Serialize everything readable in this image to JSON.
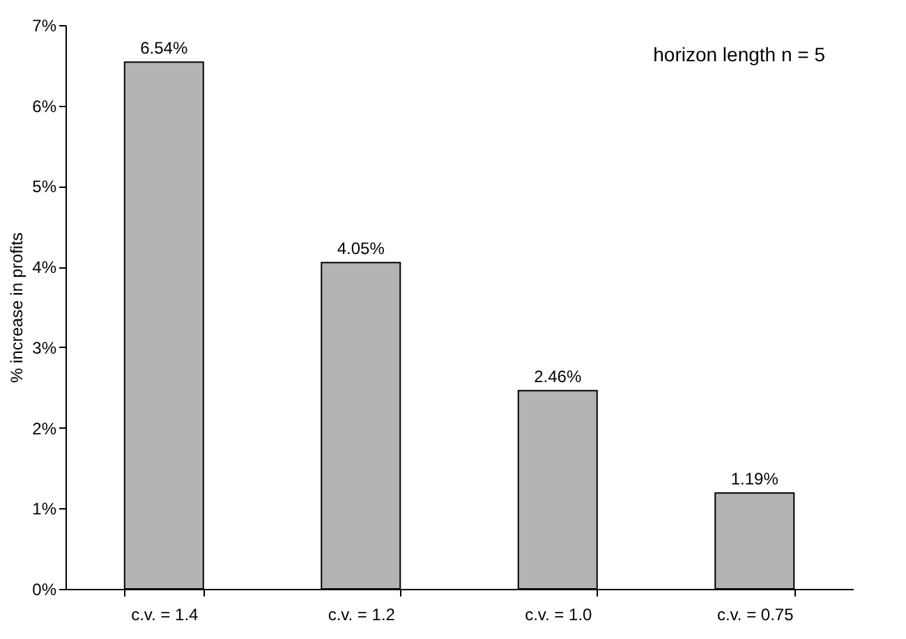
{
  "chart_data": {
    "type": "bar",
    "ylabel": "% increase in profits",
    "annotations": [
      "horizon length n = 5"
    ],
    "categories": [
      "c.v. = 1.4",
      "c.v. = 1.2",
      "c.v. = 1.0",
      "c.v. = 0.75"
    ],
    "values": [
      6.54,
      4.05,
      2.46,
      1.19
    ],
    "value_labels": [
      "6.54%",
      "4.05%",
      "2.46%",
      "1.19%"
    ],
    "color": "#b4b4b4",
    "ylim": [
      0,
      7
    ],
    "yticks": [
      {
        "value": 0,
        "label": "0%"
      },
      {
        "value": 1,
        "label": "1%"
      },
      {
        "value": 2,
        "label": "2%"
      },
      {
        "value": 3,
        "label": "3%"
      },
      {
        "value": 4,
        "label": "4%"
      },
      {
        "value": 5,
        "label": "5%"
      },
      {
        "value": 6,
        "label": "6%"
      },
      {
        "value": 7,
        "label": "7%"
      }
    ],
    "grid": false
  }
}
